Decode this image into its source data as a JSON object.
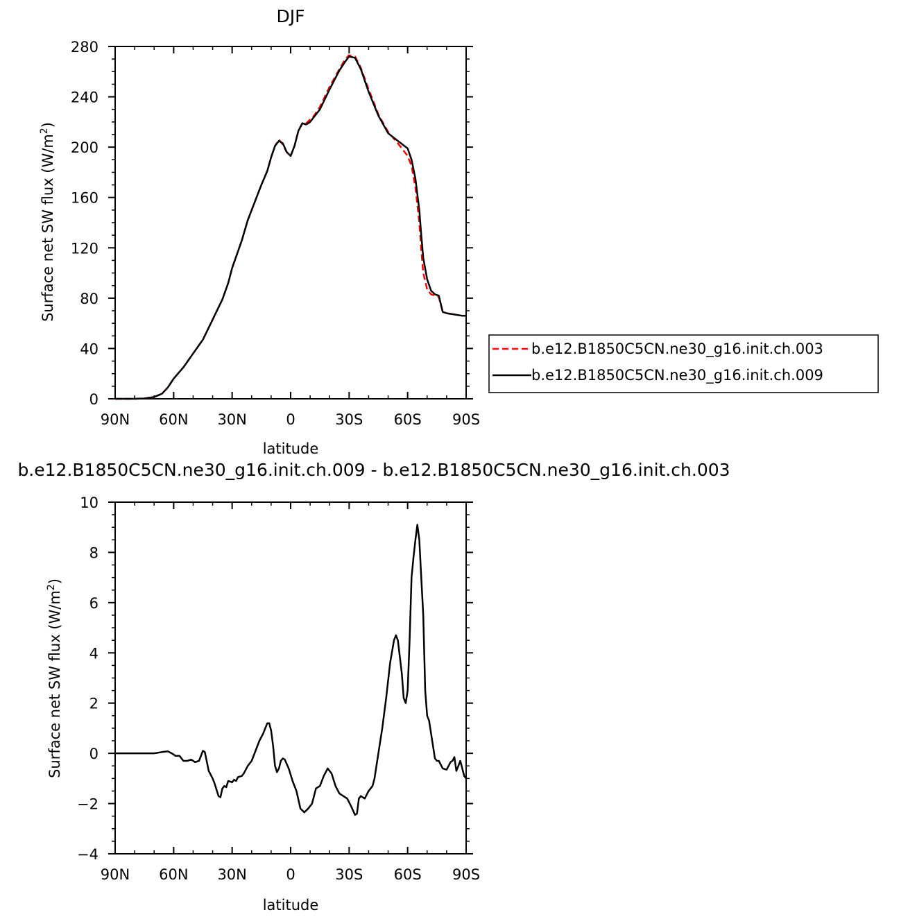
{
  "chart_data": [
    {
      "type": "line",
      "title": "DJF",
      "xlabel": "latitude",
      "ylabel": "Surface net SW flux (W/m",
      "ylabel_sup": "2",
      "ylabel_end": ")",
      "xlim": [
        90,
        -90
      ],
      "ylim": [
        0,
        280
      ],
      "x_ticks": [
        {
          "value": 90,
          "label": "90N"
        },
        {
          "value": 60,
          "label": "60N"
        },
        {
          "value": 30,
          "label": "30N"
        },
        {
          "value": 0,
          "label": "0"
        },
        {
          "value": -30,
          "label": "30S"
        },
        {
          "value": -60,
          "label": "60S"
        },
        {
          "value": -90,
          "label": "90S"
        }
      ],
      "y_ticks": [
        {
          "value": 0,
          "label": "0"
        },
        {
          "value": 40,
          "label": "40"
        },
        {
          "value": 80,
          "label": "80"
        },
        {
          "value": 120,
          "label": "120"
        },
        {
          "value": 160,
          "label": "160"
        },
        {
          "value": 200,
          "label": "200"
        },
        {
          "value": 240,
          "label": "240"
        },
        {
          "value": 280,
          "label": "280"
        }
      ],
      "legend": "right",
      "series": [
        {
          "name": "b.e12.B1850C5CN.ne30_g16.init.ch.003",
          "color": "#ff0000",
          "dash": true,
          "points": [
            [
              90,
              0
            ],
            [
              80,
              0
            ],
            [
              75,
              0.3
            ],
            [
              70,
              1.5
            ],
            [
              66,
              4
            ],
            [
              63,
              9
            ],
            [
              60,
              16
            ],
            [
              55,
              25
            ],
            [
              50,
              36
            ],
            [
              45,
              47
            ],
            [
              40,
              63
            ],
            [
              35,
              79
            ],
            [
              32,
              92
            ],
            [
              30,
              104
            ],
            [
              25,
              126
            ],
            [
              22,
              142
            ],
            [
              18,
              158
            ],
            [
              15,
              170
            ],
            [
              12,
              181
            ],
            [
              10,
              192
            ],
            [
              8,
              201
            ],
            [
              6,
              206
            ],
            [
              4,
              202
            ],
            [
              2,
              196
            ],
            [
              0,
              193
            ],
            [
              -2,
              201
            ],
            [
              -4,
              213
            ],
            [
              -6,
              219
            ],
            [
              -8,
              219
            ],
            [
              -10,
              222
            ],
            [
              -12,
              225
            ],
            [
              -15,
              232
            ],
            [
              -20,
              248
            ],
            [
              -25,
              262
            ],
            [
              -28,
              270
            ],
            [
              -30,
              273
            ],
            [
              -33,
              272
            ],
            [
              -36,
              263
            ],
            [
              -40,
              246
            ],
            [
              -45,
              226
            ],
            [
              -50,
              212
            ],
            [
              -55,
              203
            ],
            [
              -60,
              193
            ],
            [
              -62,
              185
            ],
            [
              -64,
              168
            ],
            [
              -66,
              140
            ],
            [
              -67,
              118
            ],
            [
              -68,
              100
            ],
            [
              -70,
              87
            ],
            [
              -72,
              83
            ],
            [
              -74,
              82
            ],
            [
              -76,
              81
            ],
            [
              -78,
              69
            ],
            [
              -80,
              68
            ],
            [
              -84,
              67
            ],
            [
              -88,
              66
            ],
            [
              -90,
              66
            ]
          ]
        },
        {
          "name": "b.e12.B1850C5CN.ne30_g16.init.ch.009",
          "color": "#000000",
          "dash": false,
          "points": [
            [
              90,
              0
            ],
            [
              80,
              0
            ],
            [
              75,
              0.3
            ],
            [
              70,
              1.5
            ],
            [
              66,
              4
            ],
            [
              63,
              9
            ],
            [
              60,
              16
            ],
            [
              55,
              25
            ],
            [
              50,
              36
            ],
            [
              45,
              47
            ],
            [
              40,
              63
            ],
            [
              35,
              79
            ],
            [
              32,
              92
            ],
            [
              30,
              104
            ],
            [
              25,
              126
            ],
            [
              22,
              142
            ],
            [
              18,
              158
            ],
            [
              15,
              170
            ],
            [
              12,
              181
            ],
            [
              10,
              192
            ],
            [
              8,
              201
            ],
            [
              6,
              205
            ],
            [
              4,
              203
            ],
            [
              2,
              196
            ],
            [
              0,
              193
            ],
            [
              -2,
              201
            ],
            [
              -4,
              213
            ],
            [
              -6,
              219
            ],
            [
              -8,
              218
            ],
            [
              -10,
              220
            ],
            [
              -12,
              224
            ],
            [
              -15,
              230
            ],
            [
              -20,
              246
            ],
            [
              -25,
              261
            ],
            [
              -28,
              268
            ],
            [
              -30,
              272
            ],
            [
              -33,
              271
            ],
            [
              -36,
              262
            ],
            [
              -40,
              244
            ],
            [
              -45,
              225
            ],
            [
              -50,
              211
            ],
            [
              -55,
              205
            ],
            [
              -60,
              199
            ],
            [
              -62,
              190
            ],
            [
              -64,
              175
            ],
            [
              -66,
              150
            ],
            [
              -67,
              130
            ],
            [
              -68,
              112
            ],
            [
              -70,
              95
            ],
            [
              -72,
              86
            ],
            [
              -74,
              83
            ],
            [
              -76,
              82
            ],
            [
              -78,
              69
            ],
            [
              -80,
              68
            ],
            [
              -84,
              67
            ],
            [
              -88,
              66
            ],
            [
              -90,
              66
            ]
          ]
        }
      ]
    },
    {
      "type": "line",
      "title": "b.e12.B1850C5CN.ne30_g16.init.ch.009 - b.e12.B1850C5CN.ne30_g16.init.ch.003",
      "xlabel": "latitude",
      "ylabel": "Surface net SW flux (W/m",
      "ylabel_sup": "2",
      "ylabel_end": ")",
      "xlim": [
        90,
        -90
      ],
      "ylim": [
        -4,
        10
      ],
      "x_ticks": [
        {
          "value": 90,
          "label": "90N"
        },
        {
          "value": 60,
          "label": "60N"
        },
        {
          "value": 30,
          "label": "30N"
        },
        {
          "value": 0,
          "label": "0"
        },
        {
          "value": -30,
          "label": "30S"
        },
        {
          "value": -60,
          "label": "60S"
        },
        {
          "value": -90,
          "label": "90S"
        }
      ],
      "y_ticks": [
        {
          "value": -4,
          "label": "−4"
        },
        {
          "value": -2,
          "label": "−2"
        },
        {
          "value": 0,
          "label": "0"
        },
        {
          "value": 2,
          "label": "2"
        },
        {
          "value": 4,
          "label": "4"
        },
        {
          "value": 6,
          "label": "6"
        },
        {
          "value": 8,
          "label": "8"
        },
        {
          "value": 10,
          "label": "10"
        }
      ],
      "series": [
        {
          "color": "#000000",
          "dash": false,
          "points": [
            [
              90,
              0
            ],
            [
              70,
              0
            ],
            [
              66,
              0.05
            ],
            [
              63,
              0.08
            ],
            [
              61,
              0
            ],
            [
              59,
              -0.1
            ],
            [
              57,
              -0.1
            ],
            [
              55,
              -0.3
            ],
            [
              53,
              -0.3
            ],
            [
              51,
              -0.25
            ],
            [
              49,
              -0.35
            ],
            [
              47,
              -0.3
            ],
            [
              45,
              0.1
            ],
            [
              44,
              0.05
            ],
            [
              42,
              -0.7
            ],
            [
              40,
              -1.0
            ],
            [
              39,
              -1.2
            ],
            [
              37,
              -1.7
            ],
            [
              36,
              -1.75
            ],
            [
              35,
              -1.4
            ],
            [
              34,
              -1.3
            ],
            [
              33,
              -1.35
            ],
            [
              32,
              -1.1
            ],
            [
              30,
              -1.15
            ],
            [
              29,
              -1.05
            ],
            [
              28,
              -1.1
            ],
            [
              27,
              -0.95
            ],
            [
              25,
              -0.9
            ],
            [
              24,
              -0.8
            ],
            [
              22,
              -0.5
            ],
            [
              20,
              -0.3
            ],
            [
              18,
              0.1
            ],
            [
              16,
              0.5
            ],
            [
              14,
              0.8
            ],
            [
              12,
              1.2
            ],
            [
              11,
              1.2
            ],
            [
              10,
              0.9
            ],
            [
              9,
              0.3
            ],
            [
              8,
              -0.5
            ],
            [
              7,
              -0.75
            ],
            [
              6,
              -0.6
            ],
            [
              5,
              -0.3
            ],
            [
              4,
              -0.2
            ],
            [
              3,
              -0.25
            ],
            [
              1,
              -0.6
            ],
            [
              -1,
              -1.1
            ],
            [
              -3,
              -1.5
            ],
            [
              -5,
              -2.2
            ],
            [
              -7,
              -2.35
            ],
            [
              -9,
              -2.2
            ],
            [
              -11,
              -2.0
            ],
            [
              -13,
              -1.4
            ],
            [
              -15,
              -1.3
            ],
            [
              -17,
              -0.9
            ],
            [
              -19,
              -0.6
            ],
            [
              -21,
              -0.8
            ],
            [
              -23,
              -1.3
            ],
            [
              -25,
              -1.6
            ],
            [
              -27,
              -1.7
            ],
            [
              -29,
              -1.8
            ],
            [
              -31,
              -2.1
            ],
            [
              -33,
              -2.45
            ],
            [
              -34,
              -2.4
            ],
            [
              -35,
              -1.8
            ],
            [
              -36,
              -1.7
            ],
            [
              -38,
              -1.8
            ],
            [
              -40,
              -1.5
            ],
            [
              -42,
              -1.3
            ],
            [
              -43,
              -1.0
            ],
            [
              -45,
              0
            ],
            [
              -47,
              1.0
            ],
            [
              -49,
              2.2
            ],
            [
              -51,
              3.6
            ],
            [
              -53,
              4.5
            ],
            [
              -54,
              4.7
            ],
            [
              -55,
              4.5
            ],
            [
              -57,
              3.2
            ],
            [
              -58,
              2.2
            ],
            [
              -59,
              2.0
            ],
            [
              -60,
              2.5
            ],
            [
              -61,
              4.5
            ],
            [
              -62,
              7.0
            ],
            [
              -63,
              7.8
            ],
            [
              -64,
              8.5
            ],
            [
              -65,
              9.1
            ],
            [
              -66,
              8.5
            ],
            [
              -67,
              7.0
            ],
            [
              -68,
              5.5
            ],
            [
              -69,
              2.5
            ],
            [
              -70,
              1.5
            ],
            [
              -71,
              1.3
            ],
            [
              -72,
              0.8
            ],
            [
              -73,
              0.3
            ],
            [
              -74,
              -0.2
            ],
            [
              -75,
              -0.3
            ],
            [
              -76,
              -0.3
            ],
            [
              -78,
              -0.6
            ],
            [
              -80,
              -0.65
            ],
            [
              -81,
              -0.5
            ],
            [
              -82,
              -0.35
            ],
            [
              -83,
              -0.3
            ],
            [
              -84,
              -0.15
            ],
            [
              -85,
              -0.7
            ],
            [
              -86,
              -0.5
            ],
            [
              -87,
              -0.3
            ],
            [
              -89,
              -0.9
            ],
            [
              -90,
              -1.0
            ]
          ]
        }
      ]
    }
  ]
}
